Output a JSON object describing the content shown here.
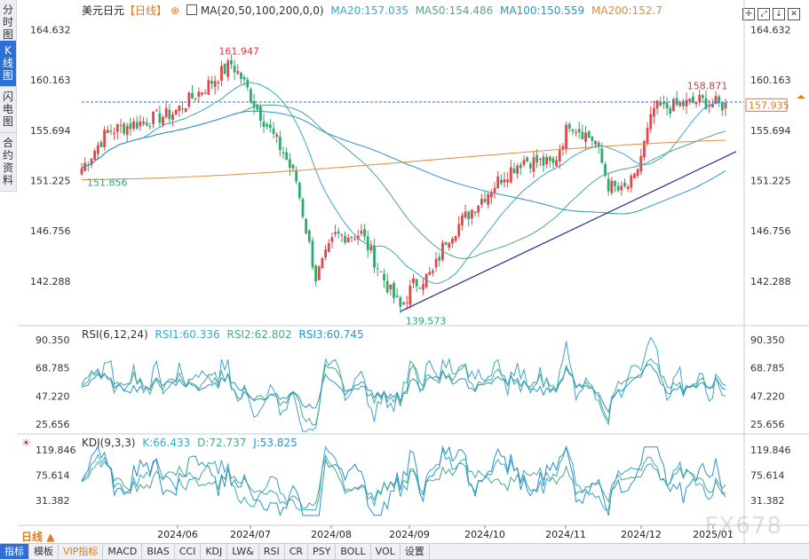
{
  "side_tabs": [
    "分时图",
    "K线图",
    "闪电图",
    "合约资料"
  ],
  "header": {
    "symbol": "美元日元",
    "period": "【日线】",
    "ma_label": "MA(20,50,100,200,0,0)",
    "ma": [
      {
        "label": "MA20:157.035",
        "color": "#3aa7c9"
      },
      {
        "label": "MA50:154.486",
        "color": "#4aa88a"
      },
      {
        "label": "MA100:150.559",
        "color": "#2a93c7"
      },
      {
        "label": "MA200:152.7",
        "color": "#e68a3c"
      }
    ]
  },
  "rsi_header": {
    "label": "RSI(6,12,24)",
    "values": [
      {
        "label": "RSI1:60.336",
        "color": "#3aa7c9"
      },
      {
        "label": "RSI2:62.802",
        "color": "#4aa88a"
      },
      {
        "label": "RSI3:60.745",
        "color": "#2a93c7"
      }
    ]
  },
  "kdj_header": {
    "label": "KDJ(9,3,3)",
    "values": [
      {
        "label": "K:66.433",
        "color": "#3aa7c9"
      },
      {
        "label": "D:72.737",
        "color": "#4aa88a"
      },
      {
        "label": "J:53.825",
        "color": "#2a93c7"
      }
    ]
  },
  "current_price": "157.935",
  "toolbar": [
    "指标",
    "模板",
    "VIP指标",
    "MACD",
    "BIAS",
    "CCI",
    "KDJ",
    "LW&",
    "RSI",
    "CR",
    "PSY",
    "BOLL",
    "VOL",
    "设置"
  ],
  "period_tab": "日线",
  "watermark": "FX678",
  "chart_data": {
    "type": "candlestick",
    "y_ticks_price": [
      "164.632",
      "160.163",
      "155.694",
      "151.225",
      "146.756",
      "142.288"
    ],
    "y_ticks_rsi": [
      "90.350",
      "68.785",
      "47.220",
      "25.656"
    ],
    "y_ticks_kdj": [
      "119.846",
      "75.614",
      "31.382"
    ],
    "x_ticks": [
      "2024/06",
      "2024/07",
      "2024/08",
      "2024/09",
      "2024/10",
      "2024/11",
      "2024/12",
      "2025/01"
    ],
    "annotations": [
      {
        "text": "161.947",
        "value": 161.947,
        "color": "#d23b3b"
      },
      {
        "text": "151.856",
        "value": 151.856,
        "color": "#2aa57a"
      },
      {
        "text": "139.573",
        "value": 139.573,
        "color": "#2aa57a"
      },
      {
        "text": "158.871",
        "value": 158.871,
        "color": "#d23b3b"
      }
    ],
    "price_range": [
      138.5,
      166.0
    ],
    "anchors_close": [
      [
        0,
        152.3
      ],
      [
        8,
        155.6
      ],
      [
        18,
        156.4
      ],
      [
        28,
        157.2
      ],
      [
        38,
        159.5
      ],
      [
        46,
        161.6
      ],
      [
        49,
        160.4
      ],
      [
        54,
        157.6
      ],
      [
        62,
        153.7
      ],
      [
        66,
        151.2
      ],
      [
        72,
        142.6
      ],
      [
        78,
        146.3
      ],
      [
        86,
        146.5
      ],
      [
        95,
        141.3
      ],
      [
        98,
        139.9
      ],
      [
        102,
        142.0
      ],
      [
        108,
        143.0
      ],
      [
        112,
        146.0
      ],
      [
        122,
        149.3
      ],
      [
        130,
        151.8
      ],
      [
        136,
        153.1
      ],
      [
        145,
        152.6
      ],
      [
        150,
        156.4
      ],
      [
        158,
        154.7
      ],
      [
        162,
        150.8
      ],
      [
        166,
        150.2
      ],
      [
        170,
        151.3
      ],
      [
        176,
        157.6
      ],
      [
        182,
        157.8
      ],
      [
        190,
        158.3
      ],
      [
        198,
        157.9
      ]
    ],
    "n_bars": 199
  }
}
